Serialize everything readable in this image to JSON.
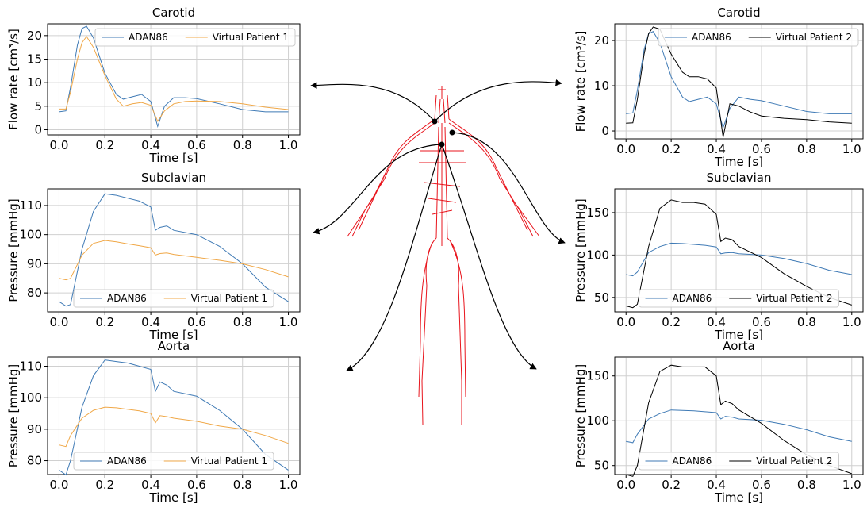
{
  "chart_data": [
    {
      "type": "line",
      "title": "Carotid",
      "xlabel": "Time [s]",
      "ylabel": "Flow rate [cm³/s]",
      "x": [
        0,
        0.03,
        0.05,
        0.08,
        0.1,
        0.12,
        0.15,
        0.2,
        0.25,
        0.28,
        0.32,
        0.36,
        0.4,
        0.43,
        0.46,
        0.5,
        0.55,
        0.6,
        0.7,
        0.8,
        0.9,
        1.0
      ],
      "series": [
        {
          "name": "ADAN86",
          "color": "#3f7ab5",
          "values": [
            3.8,
            4,
            9,
            18,
            21.5,
            22,
            19.5,
            12,
            7.5,
            6.5,
            7,
            7.5,
            6,
            0.7,
            5,
            6.8,
            6.8,
            6.6,
            5.5,
            4.3,
            3.8,
            3.8
          ]
        },
        {
          "name": "Virtual Patient 1",
          "color": "#f0a848",
          "values": [
            4.4,
            4.4,
            8,
            15,
            18.5,
            19.8,
            17.5,
            11.5,
            6.5,
            5,
            5.5,
            5.8,
            5.2,
            1.8,
            4,
            5.5,
            6,
            6.1,
            6,
            5.5,
            4.8,
            4.3
          ]
        }
      ],
      "xlim": [
        -0.05,
        1.05
      ],
      "ylim": [
        -1.1,
        22.5
      ],
      "xticks": [
        {
          "value": 0,
          "label": "0.0"
        },
        0.2,
        0.4,
        0.6,
        0.8,
        {
          "value": 1,
          "label": "1.0"
        }
      ],
      "yticks": [
        0,
        5,
        10,
        15,
        20
      ],
      "grid": true,
      "legend": "upper right"
    },
    {
      "type": "line",
      "title": "Subclavian",
      "xlabel": "Time [s]",
      "ylabel": "Pressure [mmHg]",
      "x": [
        0,
        0.03,
        0.05,
        0.1,
        0.15,
        0.2,
        0.25,
        0.3,
        0.35,
        0.4,
        0.42,
        0.44,
        0.47,
        0.5,
        0.6,
        0.7,
        0.8,
        0.9,
        1.0
      ],
      "series": [
        {
          "name": "ADAN86",
          "color": "#3f7ab5",
          "values": [
            77,
            75.5,
            76,
            95,
            108,
            114,
            113.5,
            112.5,
            111.5,
            109.5,
            101.5,
            102.5,
            103,
            101.5,
            100,
            96,
            90,
            82,
            77
          ]
        },
        {
          "name": "Virtual Patient 1",
          "color": "#f0a848",
          "values": [
            85,
            84.5,
            85,
            93,
            97,
            98,
            97.5,
            96.8,
            96.2,
            95.5,
            93,
            93.5,
            93.7,
            93.2,
            92.2,
            91.2,
            90,
            88,
            85.5
          ]
        }
      ],
      "xlim": [
        -0.05,
        1.05
      ],
      "ylim": [
        73.5,
        115.7
      ],
      "xticks": [
        {
          "value": 0,
          "label": "0.0"
        },
        0.2,
        0.4,
        0.6,
        0.8,
        {
          "value": 1,
          "label": "1.0"
        }
      ],
      "yticks": [
        80,
        90,
        100,
        110
      ],
      "grid": true,
      "legend": "lower center"
    },
    {
      "type": "line",
      "title": "Aorta",
      "xlabel": "Time [s]",
      "ylabel": "Pressure [mmHg]",
      "x": [
        0,
        0.03,
        0.05,
        0.1,
        0.15,
        0.2,
        0.25,
        0.3,
        0.35,
        0.4,
        0.42,
        0.44,
        0.47,
        0.5,
        0.6,
        0.7,
        0.8,
        0.9,
        1.0
      ],
      "series": [
        {
          "name": "ADAN86",
          "color": "#3f7ab5",
          "values": [
            77,
            75.5,
            80,
            97,
            107,
            112,
            111.5,
            111,
            110,
            109,
            102,
            105,
            104,
            102,
            100.5,
            96,
            90,
            82,
            77
          ]
        },
        {
          "name": "Virtual Patient 1",
          "color": "#f0a848",
          "values": [
            85,
            84.5,
            88,
            93.5,
            96,
            97,
            96.8,
            96.3,
            95.8,
            95,
            92,
            94.3,
            94,
            93.5,
            92.5,
            91,
            90,
            88,
            85.5
          ]
        }
      ],
      "xlim": [
        -0.05,
        1.05
      ],
      "ylim": [
        75.6,
        112.9
      ],
      "xticks": [
        {
          "value": 0,
          "label": "0.0"
        },
        0.2,
        0.4,
        0.6,
        0.8,
        {
          "value": 1,
          "label": "1.0"
        }
      ],
      "yticks": [
        80,
        90,
        100,
        110
      ],
      "grid": true,
      "legend": "lower center"
    },
    {
      "type": "line",
      "title": "Carotid",
      "xlabel": "Time [s]",
      "ylabel": "Flow rate [cm³/s]",
      "x": [
        0,
        0.03,
        0.05,
        0.08,
        0.1,
        0.12,
        0.15,
        0.2,
        0.25,
        0.28,
        0.32,
        0.36,
        0.4,
        0.43,
        0.46,
        0.5,
        0.55,
        0.6,
        0.7,
        0.8,
        0.9,
        1.0
      ],
      "series": [
        {
          "name": "ADAN86",
          "color": "#3f7ab5",
          "values": [
            3.8,
            4,
            9,
            18,
            21.5,
            22,
            19.5,
            12,
            7.5,
            6.5,
            7,
            7.5,
            6,
            0.7,
            5,
            7.5,
            7,
            6.7,
            5.5,
            4.3,
            3.8,
            3.8
          ]
        },
        {
          "name": "Virtual Patient 2",
          "color": "#000000",
          "values": [
            1.7,
            1.8,
            7,
            17,
            21.5,
            23,
            22.5,
            17,
            13,
            12,
            12,
            11.5,
            9.5,
            -1.4,
            6,
            5.5,
            4.2,
            3.3,
            2.8,
            2.5,
            2,
            1.7
          ]
        }
      ],
      "xlim": [
        -0.05,
        1.05
      ],
      "ylim": [
        -1.75,
        23.7
      ],
      "xticks": [
        {
          "value": 0,
          "label": "0.0"
        },
        0.2,
        0.4,
        0.6,
        0.8,
        {
          "value": 1,
          "label": "1.0"
        }
      ],
      "yticks": [
        0,
        10,
        20
      ],
      "grid": true,
      "legend": "upper right"
    },
    {
      "type": "line",
      "title": "Subclavian",
      "xlabel": "Time [s]",
      "ylabel": "Pressure [mmHg]",
      "x": [
        0,
        0.03,
        0.05,
        0.1,
        0.15,
        0.2,
        0.25,
        0.3,
        0.35,
        0.4,
        0.42,
        0.44,
        0.47,
        0.5,
        0.6,
        0.7,
        0.8,
        0.9,
        1.0
      ],
      "series": [
        {
          "name": "ADAN86",
          "color": "#3f7ab5",
          "values": [
            77,
            75.5,
            80,
            103,
            110,
            114,
            113.5,
            112.5,
            111.5,
            109.5,
            101.5,
            102.5,
            103,
            101.5,
            100,
            96,
            90,
            82,
            77
          ]
        },
        {
          "name": "Virtual Patient 2",
          "color": "#000000",
          "values": [
            40,
            38,
            42,
            110,
            155,
            165,
            162,
            162,
            160,
            148,
            116,
            120,
            118,
            110,
            97,
            78,
            63,
            50,
            41
          ]
        }
      ],
      "xlim": [
        -0.05,
        1.05
      ],
      "ylim": [
        33,
        178
      ],
      "xticks": [
        {
          "value": 0,
          "label": "0.0"
        },
        0.2,
        0.4,
        0.6,
        0.8,
        {
          "value": 1,
          "label": "1.0"
        }
      ],
      "yticks": [
        50,
        100,
        150
      ],
      "grid": true,
      "legend": "lower center"
    },
    {
      "type": "line",
      "title": "Aorta",
      "xlabel": "Time [s]",
      "ylabel": "Pressure [mmHg]",
      "x": [
        0,
        0.03,
        0.05,
        0.1,
        0.15,
        0.2,
        0.25,
        0.3,
        0.35,
        0.4,
        0.42,
        0.44,
        0.47,
        0.5,
        0.6,
        0.7,
        0.8,
        0.9,
        1.0
      ],
      "series": [
        {
          "name": "ADAN86",
          "color": "#3f7ab5",
          "values": [
            77,
            75.5,
            85,
            102,
            108,
            112,
            111.5,
            111,
            110,
            109,
            102,
            105,
            104,
            102,
            100.5,
            96,
            90,
            82,
            77
          ]
        },
        {
          "name": "Virtual Patient 2",
          "color": "#000000",
          "values": [
            40,
            38,
            50,
            120,
            155,
            162,
            160,
            160,
            160,
            150,
            118,
            122,
            119,
            112,
            97,
            78,
            62,
            50,
            41
          ]
        }
      ],
      "xlim": [
        -0.05,
        1.05
      ],
      "ylim": [
        40,
        171
      ],
      "xticks": [
        {
          "value": 0,
          "label": "0.0"
        },
        0.2,
        0.4,
        0.6,
        0.8,
        {
          "value": 1,
          "label": "1.0"
        }
      ],
      "yticks": [
        50,
        100,
        150
      ],
      "grid": true,
      "legend": "lower center"
    }
  ]
}
